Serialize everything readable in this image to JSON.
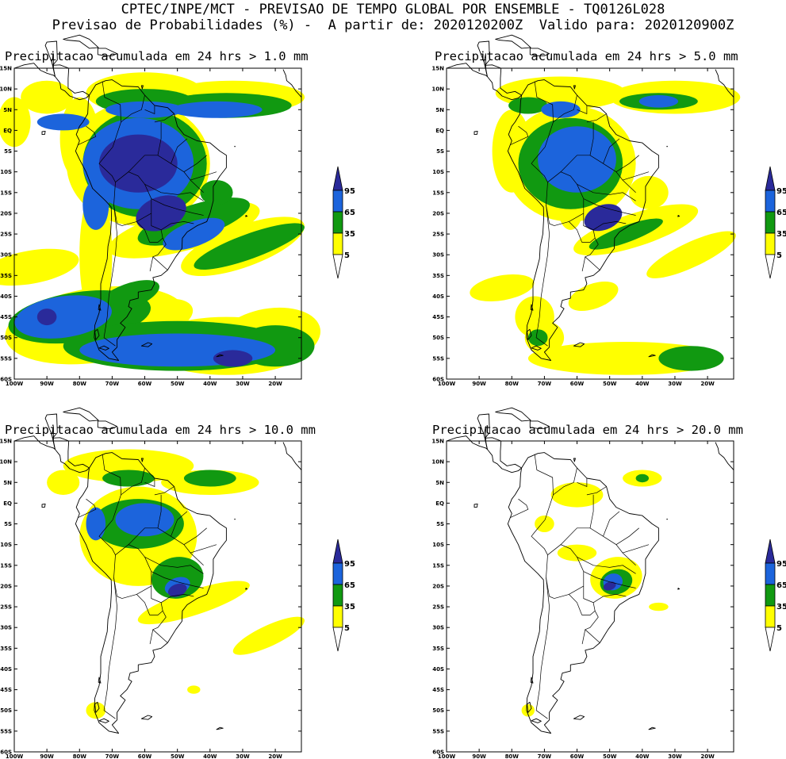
{
  "header": {
    "line1": "CPTEC/INPE/MCT - PREVISAO DE TEMPO GLOBAL POR ENSEMBLE - TQ0126L028",
    "line2": "Previsao de Probabilidades (%) -  A partir de: 2020120200Z  Valido para: 2020120900Z"
  },
  "colors": {
    "band_5_35": "#ffff00",
    "band_35_65": "#119911",
    "band_65_95": "#1c64dc",
    "band_95_100": "#2a2a9a",
    "background": "#ffffff",
    "coastline": "#000000"
  },
  "axes": {
    "lat_labels": [
      "15N",
      "10N",
      "5N",
      "EQ",
      "5S",
      "10S",
      "15S",
      "20S",
      "25S",
      "30S",
      "35S",
      "40S",
      "45S",
      "50S",
      "55S",
      "60S"
    ],
    "lon_labels": [
      "100W",
      "90W",
      "80W",
      "70W",
      "60W",
      "50W",
      "40W",
      "30W",
      "20W"
    ],
    "lat_range": [
      -60,
      15
    ],
    "lon_range": [
      -100,
      -12
    ]
  },
  "legend": {
    "ticks": [
      "95",
      "65",
      "35",
      "5"
    ]
  },
  "panels": [
    {
      "title": "Precipitacao acumulada em 24 hrs > 1.0 mm",
      "threshold_mm": 1.0
    },
    {
      "title": "Precipitacao acumulada em 24 hrs > 5.0 mm",
      "threshold_mm": 5.0
    },
    {
      "title": "Precipitacao acumulada em 24 hrs > 10.0 mm",
      "threshold_mm": 10.0
    },
    {
      "title": "Precipitacao acumulada em 24 hrs > 20.0 mm",
      "threshold_mm": 20.0
    }
  ]
}
